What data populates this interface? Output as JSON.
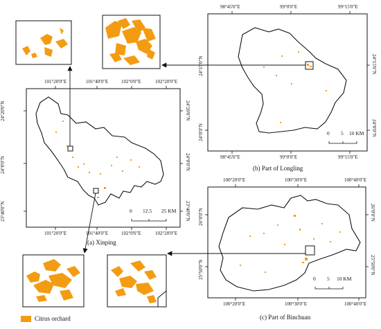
{
  "colors": {
    "citrus": "#f39c12",
    "boundary": "#111111",
    "frame": "#111111"
  },
  "xinping": {
    "caption": "(a) Xinping",
    "top_ticks": [
      "101°20'0\"E",
      "101°40'0\"E",
      "102°0'0\"E",
      "102°20'0\"E"
    ],
    "bottom_ticks": [
      "101°20'0\"E",
      "101°40'0\"E",
      "102°0'0\"E",
      "102°20'0\"E"
    ],
    "left_ticks": [
      "24°20'0\"N",
      "24°0'0\"N",
      "23°40'0\"N"
    ],
    "right_ticks": [
      "24°20'0\"N",
      "24°0'0\"N",
      "23°40'0\"N"
    ],
    "scale": {
      "labels": [
        "0",
        "12.5",
        "25 KM"
      ]
    }
  },
  "longling": {
    "caption": "(b) Part of Longling",
    "top_ticks": [
      "98°45'0\"E",
      "99°0'0\"E",
      "99°15'0\"E"
    ],
    "bottom_ticks": [
      "98°45'0\"E",
      "99°0'0\"E",
      "99°15'0\"E"
    ],
    "left_ticks": [
      "24°15'0\"N",
      "24°0'0\"N"
    ],
    "right_ticks": [
      "24°15'0\"N",
      "24°0'0\"N"
    ],
    "scale": {
      "labels": [
        "0",
        "5",
        "10 KM"
      ]
    }
  },
  "binchuan": {
    "caption": "(c) Part of Binchuan",
    "top_ticks": [
      "100°20'0\"E",
      "100°30'0\"E",
      "100°40'0\"E"
    ],
    "bottom_ticks": [
      "100°20'0\"E",
      "100°30'0\"E",
      "100°40'0\"E"
    ],
    "left_ticks": [
      "26°0'0\"N",
      "25°50'0\"N"
    ],
    "right_ticks": [
      "26°0'0\"N",
      "25°50'0\"N"
    ],
    "scale": {
      "labels": [
        "0",
        "5",
        "10 KM"
      ]
    }
  },
  "legend": {
    "label": "Citrus orchard"
  }
}
